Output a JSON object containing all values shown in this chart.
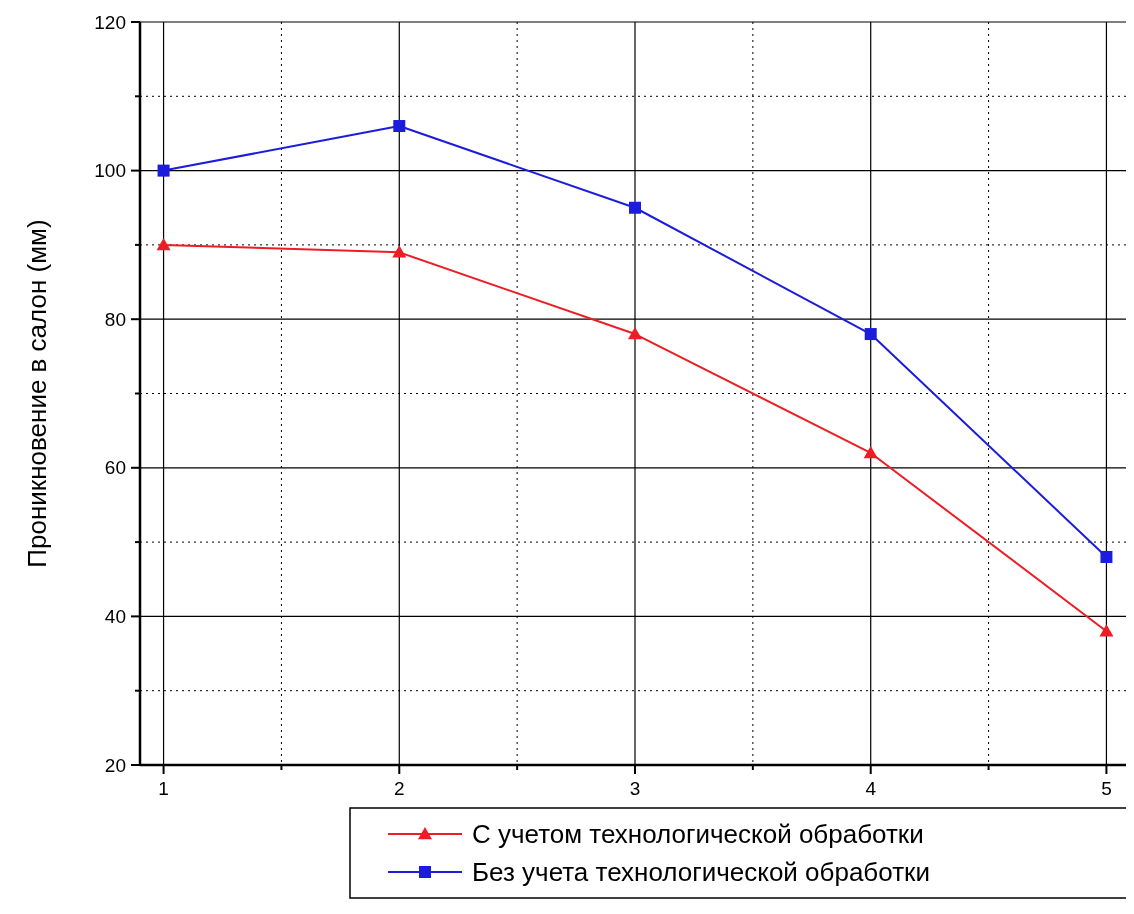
{
  "chart_data": {
    "type": "line",
    "ylabel": "Проникновение в салон (мм)",
    "x": [
      1,
      2,
      3,
      4,
      5
    ],
    "xlim": [
      0.9,
      5.1
    ],
    "ylim": [
      20,
      120
    ],
    "xticks": [
      1,
      {
        "value": 1.5,
        "label": null
      },
      2,
      {
        "value": 2.5,
        "label": null
      },
      3,
      {
        "value": 3.5,
        "label": null
      },
      4,
      {
        "value": 4.5,
        "label": null
      },
      5
    ],
    "yticks": [
      20,
      {
        "value": 30,
        "label": null
      },
      40,
      {
        "value": 50,
        "label": null
      },
      60,
      {
        "value": 70,
        "label": null
      },
      80,
      {
        "value": 90,
        "label": null
      },
      100,
      {
        "value": 110,
        "label": null
      },
      120
    ],
    "grid": true,
    "legend": "bottom right",
    "line_style": "solid",
    "series": [
      {
        "name": "С учетом технологической обработки",
        "color": "#ee1c24",
        "marker": "triangle",
        "values": [
          90,
          89,
          78,
          62,
          38
        ]
      },
      {
        "name": "Без учета технологической обработки",
        "color": "#1c1cdc",
        "marker": "square",
        "values": [
          100,
          106,
          95,
          78,
          48
        ]
      }
    ]
  }
}
